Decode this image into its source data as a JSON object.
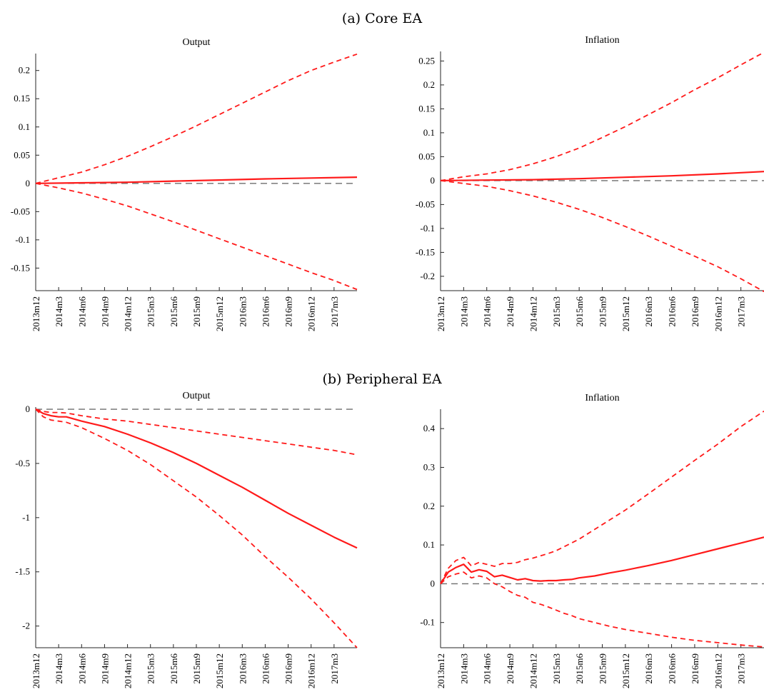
{
  "figure": {
    "panels": [
      {
        "title": "(a) Core EA"
      },
      {
        "title": "(b) Peripheral EA"
      }
    ]
  },
  "chart_data": [
    {
      "type": "line",
      "panel": "(a) Core EA",
      "title": "Output",
      "x_tick_labels": [
        "2013m12",
        "2014m3",
        "2014m6",
        "2014m9",
        "2014m12",
        "2015m3",
        "2015m6",
        "2015m9",
        "2015m12",
        "2016m3",
        "2016m6",
        "2016m9",
        "2016m12",
        "2017m3"
      ],
      "x_months": 42,
      "ylim": [
        -0.19,
        0.23
      ],
      "yticks": [
        -0.15,
        -0.1,
        -0.05,
        0,
        0.05,
        0.1,
        0.15,
        0.2
      ],
      "ytick_labels": [
        "-0.15",
        "-0.1",
        "-0.05",
        "0",
        "0.05",
        "0.1",
        "0.15",
        "0.2"
      ],
      "zero_line": true,
      "series": [
        {
          "style": "solid",
          "x": [
            0,
            6,
            12,
            18,
            24,
            30,
            36,
            42
          ],
          "y": [
            0,
            0.001,
            0.002,
            0.004,
            0.006,
            0.008,
            0.0095,
            0.011
          ]
        },
        {
          "style": "dashed",
          "x": [
            0,
            3,
            6,
            9,
            12,
            15,
            18,
            21,
            24,
            27,
            30,
            33,
            36,
            39,
            42
          ],
          "y": [
            0,
            0.01,
            0.02,
            0.033,
            0.048,
            0.065,
            0.083,
            0.102,
            0.122,
            0.142,
            0.162,
            0.182,
            0.2,
            0.215,
            0.229
          ]
        },
        {
          "style": "dashed",
          "x": [
            0,
            3,
            6,
            9,
            12,
            15,
            18,
            21,
            24,
            27,
            30,
            33,
            36,
            39,
            42
          ],
          "y": [
            0,
            -0.008,
            -0.017,
            -0.028,
            -0.04,
            -0.054,
            -0.068,
            -0.083,
            -0.098,
            -0.113,
            -0.128,
            -0.143,
            -0.158,
            -0.172,
            -0.188
          ]
        }
      ]
    },
    {
      "type": "line",
      "panel": "(a) Core EA",
      "title": "Inflation",
      "x_tick_labels": [
        "2013m12",
        "2014m3",
        "2014m6",
        "2014m9",
        "2014m12",
        "2015m3",
        "2015m6",
        "2015m9",
        "2015m12",
        "2016m3",
        "2016m6",
        "2016m9",
        "2016m12",
        "2017m3"
      ],
      "x_months": 42,
      "ylim": [
        -0.23,
        0.27
      ],
      "yticks": [
        -0.2,
        -0.15,
        -0.1,
        -0.05,
        0,
        0.05,
        0.1,
        0.15,
        0.2,
        0.25
      ],
      "ytick_labels": [
        "-0.2",
        "-0.15",
        "-0.1",
        "-0.05",
        "0",
        "0.05",
        "0.1",
        "0.15",
        "0.2",
        "0.25"
      ],
      "zero_line": true,
      "series": [
        {
          "style": "solid",
          "x": [
            0,
            6,
            12,
            18,
            24,
            30,
            36,
            42
          ],
          "y": [
            0,
            0.001,
            0.002,
            0.004,
            0.007,
            0.01,
            0.014,
            0.019
          ]
        },
        {
          "style": "dashed",
          "x": [
            0,
            3,
            6,
            9,
            12,
            15,
            18,
            21,
            24,
            27,
            30,
            33,
            36,
            39,
            42
          ],
          "y": [
            0,
            0.008,
            0.014,
            0.023,
            0.035,
            0.05,
            0.068,
            0.09,
            0.113,
            0.138,
            0.163,
            0.19,
            0.215,
            0.242,
            0.268
          ]
        },
        {
          "style": "dashed",
          "x": [
            0,
            3,
            6,
            9,
            12,
            15,
            18,
            21,
            24,
            27,
            30,
            33,
            36,
            39,
            42
          ],
          "y": [
            0,
            -0.006,
            -0.012,
            -0.021,
            -0.032,
            -0.045,
            -0.06,
            -0.077,
            -0.096,
            -0.116,
            -0.137,
            -0.158,
            -0.18,
            -0.205,
            -0.232
          ]
        }
      ]
    },
    {
      "type": "line",
      "panel": "(b) Peripheral EA",
      "title": "Output",
      "x_tick_labels": [
        "2013m12",
        "2014m3",
        "2014m6",
        "2014m9",
        "2014m12",
        "2015m3",
        "2015m6",
        "2015m9",
        "2015m12",
        "2016m3",
        "2016m6",
        "2016m9",
        "2016m12",
        "2017m3"
      ],
      "x_months": 42,
      "ylim": [
        -2.2,
        0.02
      ],
      "yticks": [
        -2,
        -1.5,
        -1,
        -0.5,
        0
      ],
      "ytick_labels": [
        "-2",
        "-1.5",
        "-1",
        "-0.5",
        "0"
      ],
      "zero_line": true,
      "series": [
        {
          "style": "solid",
          "x": [
            0,
            1,
            2,
            3,
            4,
            6,
            9,
            12,
            15,
            18,
            21,
            24,
            27,
            30,
            33,
            36,
            39,
            42
          ],
          "y": [
            0,
            -0.04,
            -0.06,
            -0.07,
            -0.07,
            -0.11,
            -0.16,
            -0.23,
            -0.31,
            -0.4,
            -0.5,
            -0.61,
            -0.72,
            -0.84,
            -0.96,
            -1.07,
            -1.18,
            -1.28
          ]
        },
        {
          "style": "dashed",
          "x": [
            0,
            1,
            2,
            3,
            4,
            6,
            9,
            12,
            15,
            18,
            21,
            24,
            27,
            30,
            33,
            36,
            39,
            42
          ],
          "y": [
            0,
            -0.02,
            -0.03,
            -0.03,
            -0.035,
            -0.06,
            -0.09,
            -0.11,
            -0.14,
            -0.17,
            -0.2,
            -0.23,
            -0.26,
            -0.29,
            -0.32,
            -0.35,
            -0.38,
            -0.42
          ]
        },
        {
          "style": "dashed",
          "x": [
            0,
            1,
            2,
            3,
            4,
            6,
            9,
            12,
            15,
            18,
            21,
            24,
            27,
            30,
            33,
            36,
            39,
            42
          ],
          "y": [
            0,
            -0.07,
            -0.1,
            -0.11,
            -0.12,
            -0.17,
            -0.27,
            -0.38,
            -0.51,
            -0.66,
            -0.81,
            -0.98,
            -1.16,
            -1.36,
            -1.55,
            -1.75,
            -1.97,
            -2.2
          ]
        }
      ]
    },
    {
      "type": "line",
      "panel": "(b) Peripheral EA",
      "title": "Inflation",
      "x_tick_labels": [
        "2013m12",
        "2014m3",
        "2014m6",
        "2014m9",
        "2014m12",
        "2015m3",
        "2015m6",
        "2015m9",
        "2015m12",
        "2016m3",
        "2016m6",
        "2016m9",
        "2016m12",
        "2017m3"
      ],
      "x_months": 42,
      "ylim": [
        -0.165,
        0.45
      ],
      "yticks": [
        -0.1,
        0,
        0.1,
        0.2,
        0.3,
        0.4
      ],
      "ytick_labels": [
        "-0.1",
        "0",
        "0.1",
        "0.2",
        "0.3",
        "0.4"
      ],
      "zero_line": true,
      "series": [
        {
          "style": "solid",
          "x": [
            0,
            1,
            2,
            3,
            4,
            5,
            6,
            7,
            8,
            9,
            10,
            11,
            12,
            13,
            14,
            15,
            16,
            17,
            18,
            20,
            22,
            24,
            27,
            30,
            33,
            36,
            39,
            42
          ],
          "y": [
            0,
            0.03,
            0.042,
            0.05,
            0.03,
            0.036,
            0.032,
            0.018,
            0.022,
            0.016,
            0.01,
            0.013,
            0.008,
            0.007,
            0.008,
            0.008,
            0.01,
            0.011,
            0.015,
            0.02,
            0.028,
            0.035,
            0.047,
            0.06,
            0.075,
            0.09,
            0.105,
            0.12
          ]
        },
        {
          "style": "dashed",
          "x": [
            0,
            1,
            2,
            3,
            4,
            5,
            6,
            7,
            8,
            9,
            10,
            11,
            12,
            13,
            14,
            15,
            16,
            17,
            18,
            20,
            22,
            24,
            27,
            30,
            33,
            36,
            39,
            42
          ],
          "y": [
            0,
            0.04,
            0.06,
            0.068,
            0.046,
            0.055,
            0.05,
            0.045,
            0.052,
            0.052,
            0.055,
            0.062,
            0.066,
            0.072,
            0.078,
            0.085,
            0.095,
            0.105,
            0.115,
            0.14,
            0.165,
            0.19,
            0.232,
            0.275,
            0.318,
            0.36,
            0.405,
            0.445
          ]
        },
        {
          "style": "dashed",
          "x": [
            0,
            1,
            2,
            3,
            4,
            5,
            6,
            7,
            8,
            9,
            10,
            11,
            12,
            13,
            14,
            15,
            16,
            17,
            18,
            20,
            22,
            24,
            27,
            30,
            33,
            36,
            39,
            42
          ],
          "y": [
            0,
            0.018,
            0.025,
            0.03,
            0.015,
            0.02,
            0.015,
            0,
            -0.008,
            -0.02,
            -0.03,
            -0.035,
            -0.048,
            -0.053,
            -0.06,
            -0.068,
            -0.076,
            -0.082,
            -0.09,
            -0.1,
            -0.11,
            -0.118,
            -0.128,
            -0.138,
            -0.146,
            -0.152,
            -0.158,
            -0.163
          ]
        }
      ]
    }
  ]
}
